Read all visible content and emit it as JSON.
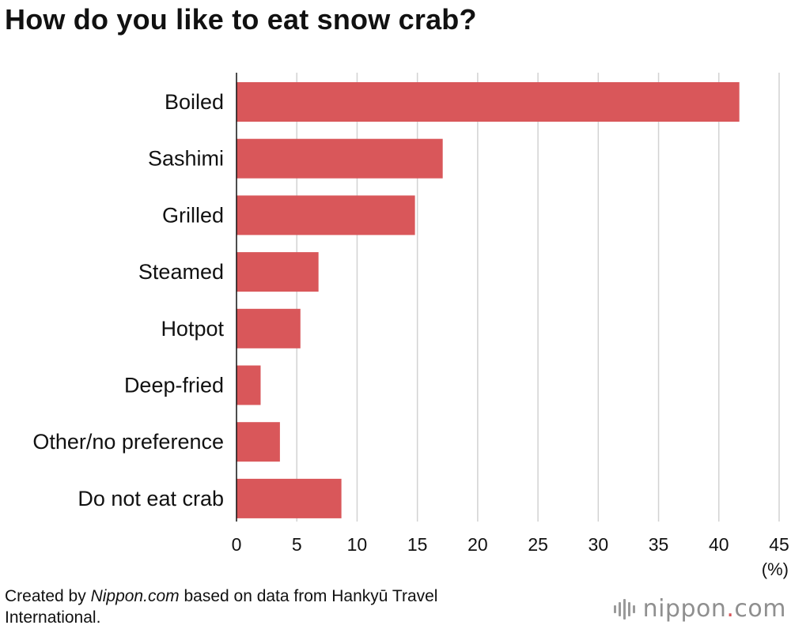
{
  "chart_data": {
    "type": "bar",
    "orientation": "horizontal",
    "title": "How do you like to eat snow crab?",
    "categories": [
      "Boiled",
      "Sashimi",
      "Grilled",
      "Steamed",
      "Hotpot",
      "Deep-fried",
      "Other/no preference",
      "Do not eat crab"
    ],
    "values": [
      41.7,
      17.1,
      14.8,
      6.8,
      5.3,
      2.0,
      3.6,
      8.7
    ],
    "x_ticks": [
      "0",
      "5",
      "10",
      "15",
      "20",
      "25",
      "30",
      "35",
      "40",
      "45"
    ],
    "xlim": [
      0,
      45
    ],
    "unit_label": "(%)",
    "grid": true,
    "bar_color": "#d9575a",
    "grid_color": "#d2d2d2"
  },
  "footer": {
    "source_prefix": "Created by ",
    "source_brand": "Nippon.com",
    "source_suffix": " based on data from Hankyū Travel International."
  },
  "logo": {
    "text_main": "nippon",
    "text_dot": ".",
    "text_tld": "com",
    "icon": "nippon-com-logo-icon"
  }
}
